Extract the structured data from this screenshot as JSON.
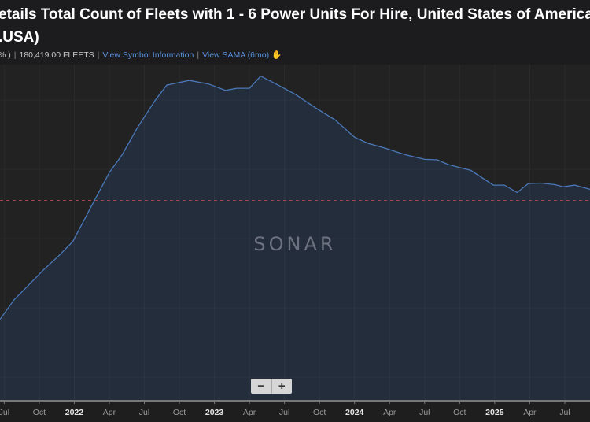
{
  "header": {
    "title_line1": "etails Total Count of Fleets with 1 - 6 Power Units For Hire, United States of America",
    "title_line2": ".USA)",
    "change_fragment": "% )",
    "current_value": "180,419.00 FLEETS",
    "symbol_info_link": "View Symbol Information",
    "sama_link": "View SAMA (6mo)",
    "sama_icon": "chart-hand-icon"
  },
  "watermark": "SONAR",
  "zoom_controls": {
    "minus": "−",
    "plus": "+"
  },
  "colors": {
    "line": "#4a78b8",
    "area": "#242d3c",
    "bg": "#222222",
    "dashed": "#a04848"
  },
  "chart_data": {
    "type": "area",
    "title": "Total Count of Fleets with 1 - 6 Power Units For Hire, United States of America",
    "x_unit": "decimal year",
    "x": [
      2021.47,
      2021.57,
      2021.67,
      2021.78,
      2021.89,
      2021.99,
      2022.12,
      2022.25,
      2022.34,
      2022.45,
      2022.58,
      2022.66,
      2022.82,
      2022.96,
      2023.08,
      2023.16,
      2023.25,
      2023.33,
      2023.44,
      2023.58,
      2023.72,
      2023.86,
      2024.0,
      2024.1,
      2024.22,
      2024.36,
      2024.5,
      2024.59,
      2024.67,
      2024.83,
      2024.99,
      2025.07,
      2025.16,
      2025.24,
      2025.33,
      2025.43,
      2025.49,
      2025.57,
      2025.68
    ],
    "values": [
      155700,
      159400,
      162100,
      165100,
      167800,
      170500,
      177100,
      183600,
      186900,
      192100,
      197400,
      200200,
      201100,
      200400,
      199200,
      199600,
      199600,
      201900,
      200400,
      198400,
      195900,
      193600,
      190300,
      189100,
      188200,
      187000,
      186100,
      186000,
      185100,
      184000,
      181200,
      181200,
      179800,
      181500,
      181600,
      181300,
      180900,
      181200,
      180419
    ],
    "xlim": [
      2021.47,
      2025.68
    ],
    "ylim": [
      140400,
      204100
    ],
    "reference_line": 178300,
    "x_ticks": [
      {
        "t": 2021.5,
        "label": "Jul",
        "major": false
      },
      {
        "t": 2021.75,
        "label": "Oct",
        "major": false
      },
      {
        "t": 2022.0,
        "label": "2022",
        "major": true
      },
      {
        "t": 2022.25,
        "label": "Apr",
        "major": false
      },
      {
        "t": 2022.5,
        "label": "Jul",
        "major": false
      },
      {
        "t": 2022.75,
        "label": "Oct",
        "major": false
      },
      {
        "t": 2023.0,
        "label": "2023",
        "major": true
      },
      {
        "t": 2023.25,
        "label": "Apr",
        "major": false
      },
      {
        "t": 2023.5,
        "label": "Jul",
        "major": false
      },
      {
        "t": 2023.75,
        "label": "Oct",
        "major": false
      },
      {
        "t": 2024.0,
        "label": "2024",
        "major": true
      },
      {
        "t": 2024.25,
        "label": "Apr",
        "major": false
      },
      {
        "t": 2024.5,
        "label": "Jul",
        "major": false
      },
      {
        "t": 2024.75,
        "label": "Oct",
        "major": false
      },
      {
        "t": 2025.0,
        "label": "2025",
        "major": true
      },
      {
        "t": 2025.25,
        "label": "Apr",
        "major": false
      },
      {
        "t": 2025.5,
        "label": "Jul",
        "major": false
      }
    ],
    "grid": true,
    "legend": "none"
  }
}
